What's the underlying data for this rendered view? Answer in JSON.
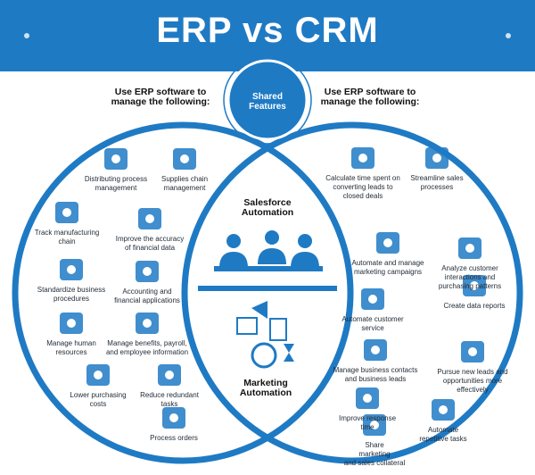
{
  "title": "ERP vs CRM",
  "shared": {
    "line1": "Shared",
    "line2": "Features"
  },
  "left": {
    "heading1": "Use ERP software to",
    "heading2": "manage the following:",
    "items": [
      {
        "l1": "Distributing process",
        "l2": "management",
        "icon": "database-network-icon"
      },
      {
        "l1": "Supplies chain",
        "l2": "management",
        "icon": "supply-chain-icon"
      },
      {
        "l1": "Track manufacturing",
        "l2": "chain",
        "icon": "factory-icon"
      },
      {
        "l1": "Improve the accuracy",
        "l2": "of financial data",
        "icon": "financial-chart-icon"
      },
      {
        "l1": "Standardize business",
        "l2": "procedures",
        "icon": "document-icon"
      },
      {
        "l1": "Accounting and",
        "l2": "financial applications",
        "icon": "calculator-icon"
      },
      {
        "l1": "Manage human",
        "l2": "resources",
        "icon": "people-icon"
      },
      {
        "l1": "Manage benefits, payroll,",
        "l2": "and employee information",
        "icon": "payroll-icon"
      },
      {
        "l1": "Lower purchasing",
        "l2": "costs",
        "icon": "growth-chart-icon"
      },
      {
        "l1": "Reduce redundant",
        "l2": "tasks",
        "icon": "infinity-icon"
      },
      {
        "l1": "Process orders",
        "l2": "",
        "icon": "process-flow-icon"
      }
    ]
  },
  "right": {
    "heading1": "Use ERP software to",
    "heading2": "manage the following:",
    "items": [
      {
        "l1": "Calculate time spent on",
        "l2": "converting leads to",
        "l3": "closed deals",
        "icon": "service-bell-icon"
      },
      {
        "l1": "Streamline sales",
        "l2": "processes",
        "l3": "",
        "icon": "sales-agent-icon"
      },
      {
        "l1": "Automate and manage",
        "l2": "marketing campaigns",
        "l3": "",
        "icon": "megaphone-icon"
      },
      {
        "l1": "Analyze customer",
        "l2": "interactions and",
        "l3": "purchasing patterns",
        "icon": "analytics-search-icon"
      },
      {
        "l1": "Automate customer",
        "l2": "service",
        "l3": "",
        "icon": "customer-group-icon"
      },
      {
        "l1": "Create data reports",
        "l2": "",
        "l3": "",
        "icon": "report-icon"
      },
      {
        "l1": "Manage business contacts",
        "l2": "and business leads",
        "l3": "",
        "icon": "handshake-icon"
      },
      {
        "l1": "Pursue new leads and",
        "l2": "opportunities more",
        "l3": "effectively",
        "icon": "funnel-icon"
      },
      {
        "l1": "Improve response",
        "l2": "time",
        "l3": "",
        "icon": "pointing-hand-icon"
      },
      {
        "l1": "Automate",
        "l2": "repetitive tasks",
        "l3": "",
        "icon": "touch-automation-icon"
      },
      {
        "l1": "Share",
        "l2": "marketing",
        "l3": "and sales collateral",
        "icon": "presentation-icon"
      }
    ]
  },
  "center": {
    "top1": "Salesforce",
    "top2": "Automation",
    "bottom1": "Marketing",
    "bottom2": "Automation"
  },
  "colors": {
    "primary": "#1f7ac4",
    "text": "#1f2a36"
  }
}
